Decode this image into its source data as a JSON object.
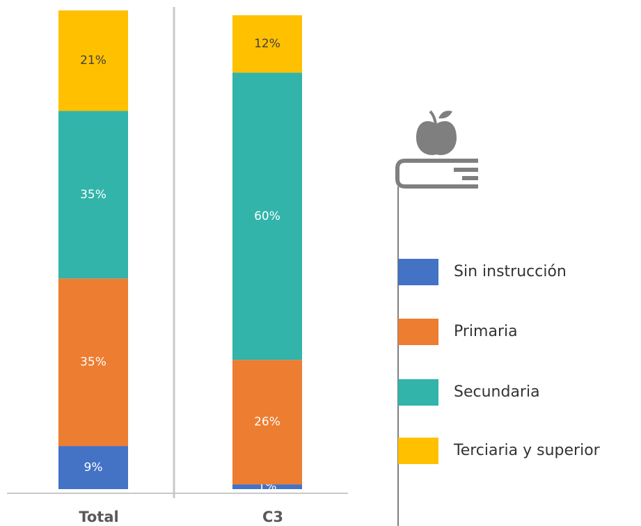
{
  "chart_data": {
    "type": "bar",
    "stacked": true,
    "categories": [
      "Total",
      "C3"
    ],
    "series": [
      {
        "name": "Sin instrucción",
        "color": "#4472c4",
        "values": [
          9,
          1
        ],
        "value_labels": [
          "9%",
          "1%"
        ]
      },
      {
        "name": "Primaria",
        "color": "#ed7d31",
        "values": [
          35,
          26
        ],
        "value_labels": [
          "35%",
          "26%"
        ]
      },
      {
        "name": "Secundaria",
        "color": "#32b4aa",
        "values": [
          35,
          60
        ],
        "value_labels": [
          "35%",
          "60%"
        ]
      },
      {
        "name": "Terciaria y superior",
        "color": "#ffc000",
        "values": [
          21,
          12
        ],
        "value_labels": [
          "21%",
          "12%"
        ]
      }
    ]
  }
}
